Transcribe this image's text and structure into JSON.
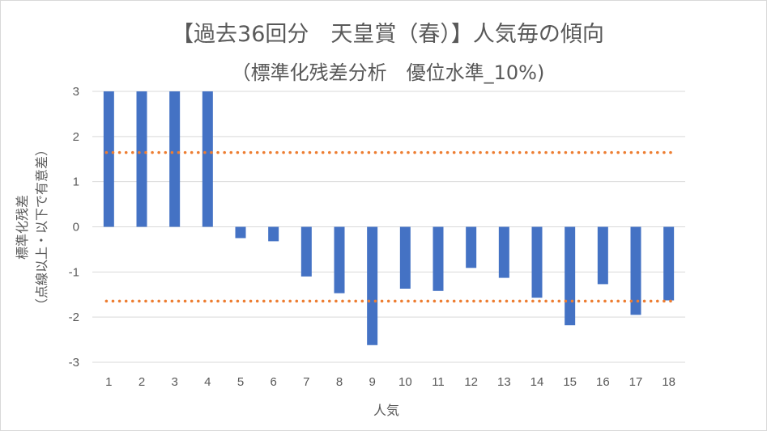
{
  "chart_data": {
    "type": "bar",
    "title": "【過去36回分　天皇賞（春）】人気毎の傾向",
    "subtitle": "（標準化残差分析　優位水準_10%)",
    "xlabel": "人気",
    "ylabel": "標準化残差",
    "ylabel_note": "（点線以上・以下で有意差）",
    "categories": [
      "1",
      "2",
      "3",
      "4",
      "5",
      "6",
      "7",
      "8",
      "9",
      "10",
      "11",
      "12",
      "13",
      "14",
      "15",
      "16",
      "17",
      "18"
    ],
    "series": [
      {
        "values": [
          3.0,
          3.0,
          3.0,
          3.0,
          -0.25,
          -0.32,
          -1.1,
          -1.47,
          -2.62,
          -1.37,
          -1.42,
          -0.91,
          -1.13,
          -1.57,
          -2.18,
          -1.27,
          -1.95,
          -1.63
        ]
      }
    ],
    "thresholds": [
      1.645,
      -1.645
    ],
    "ylim": [
      -3,
      3
    ],
    "yticks": [
      "-3",
      "-2",
      "-1",
      "0",
      "1",
      "2",
      "3"
    ],
    "grid": true,
    "colors": {
      "bar": "#4472c4",
      "threshold": "#ed7d31",
      "grid": "#d9d9d9",
      "text": "#595959"
    }
  }
}
